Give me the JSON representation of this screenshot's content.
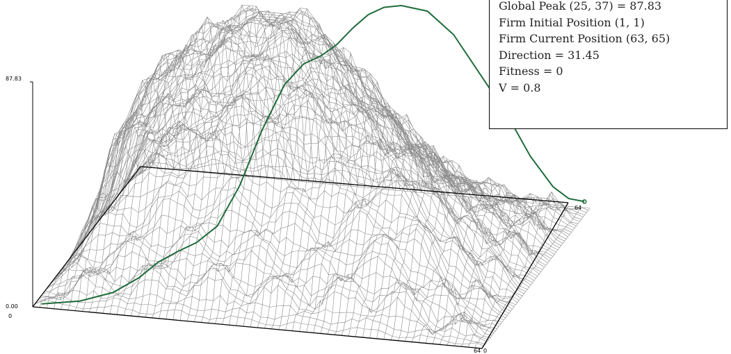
{
  "info_panel": {
    "lines": [
      "Global Peak (25, 37) = 87.83",
      "Firm Initial Position (1, 1)",
      "Firm Current Position (63, 65)",
      "Direction = 31.45",
      "Fitness = 0",
      "V = 0.8"
    ]
  },
  "chart_data": {
    "type": "surface",
    "grid_size": 64,
    "z_range": [
      0.0,
      87.83
    ],
    "global_peak": {
      "x": 25,
      "y": 37,
      "z": 87.83
    },
    "axis_labels": {
      "z_max": "87.83",
      "z_min": "0.00",
      "origin": "0",
      "x_end": "64",
      "y_end": "64",
      "y_start_corner": "0"
    },
    "path": {
      "start": [
        1,
        1
      ],
      "end": [
        63,
        65
      ],
      "points": [
        [
          1,
          1,
          0.5
        ],
        [
          6,
          3,
          1.2
        ],
        [
          10,
          6,
          3.0
        ],
        [
          13,
          9,
          7.0
        ],
        [
          15,
          12,
          11.0
        ],
        [
          17,
          15,
          13.0
        ],
        [
          19,
          18,
          14.5
        ],
        [
          21,
          22,
          18.0
        ],
        [
          23,
          27,
          30.0
        ],
        [
          25,
          32,
          48.0
        ],
        [
          27,
          37,
          62.0
        ],
        [
          29,
          40,
          68.0
        ],
        [
          31,
          42,
          70.0
        ],
        [
          33,
          43,
          74.0
        ],
        [
          35,
          44,
          80.0
        ],
        [
          37,
          45,
          85.0
        ],
        [
          39,
          46,
          87.5
        ],
        [
          41,
          48,
          87.0
        ],
        [
          44,
          51,
          83.0
        ],
        [
          47,
          54,
          72.0
        ],
        [
          50,
          57,
          55.0
        ],
        [
          53,
          60,
          38.0
        ],
        [
          56,
          62,
          20.0
        ],
        [
          59,
          63,
          8.0
        ],
        [
          61,
          64,
          3.0
        ],
        [
          63,
          65,
          1.5
        ]
      ]
    },
    "colors": {
      "surface": "#8a8a8a",
      "path": "#1f6b3a",
      "frame": "#000000"
    }
  }
}
